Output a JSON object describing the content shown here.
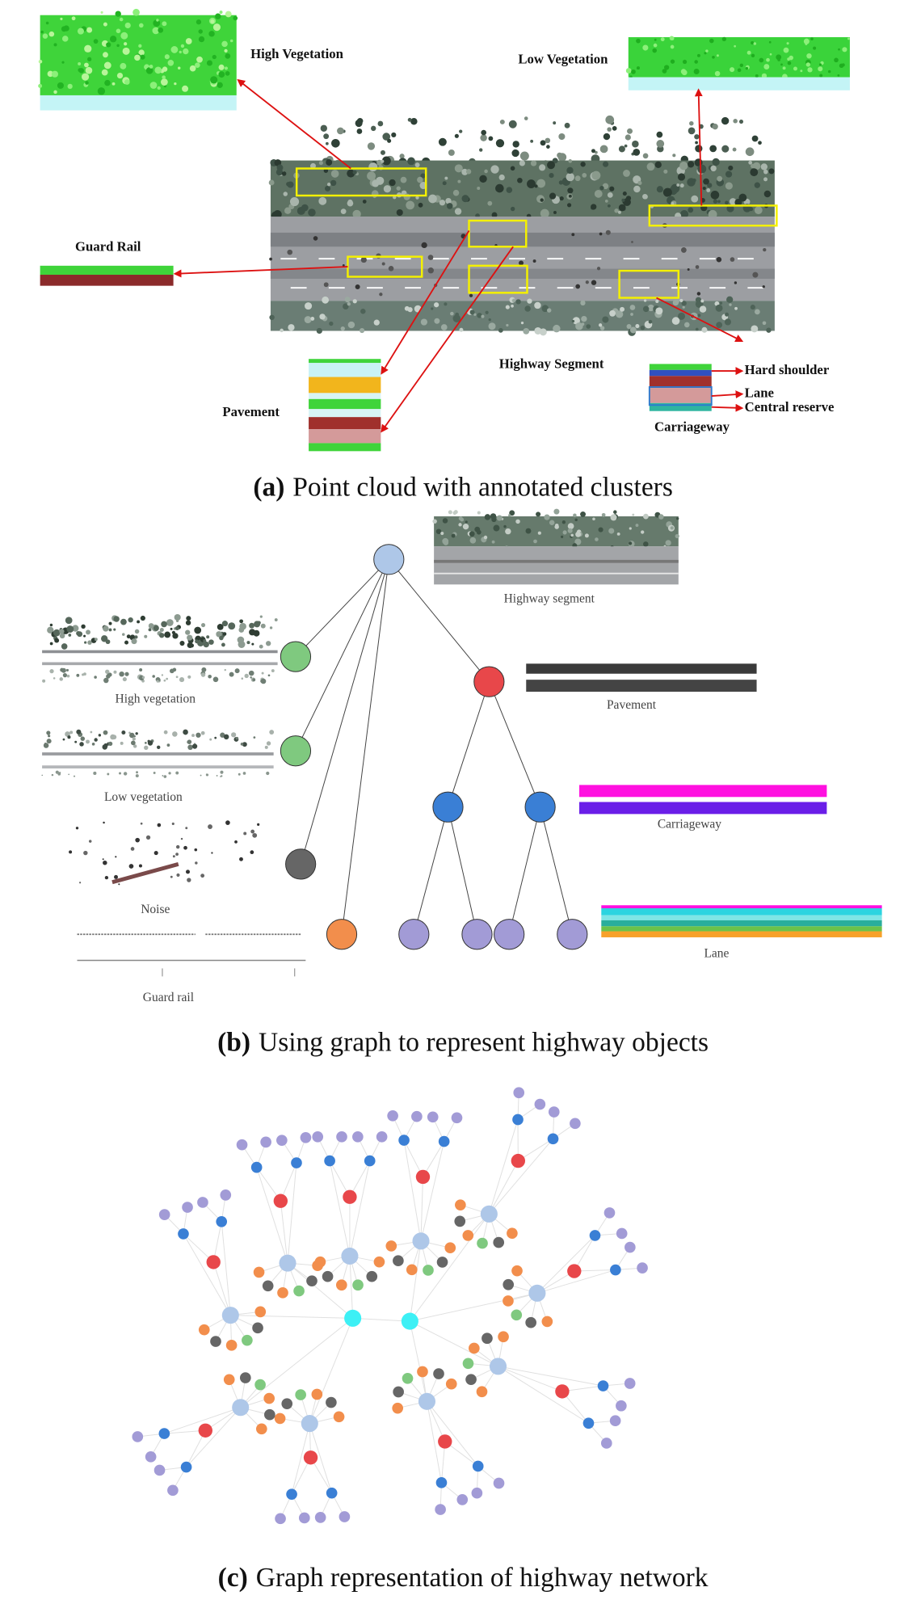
{
  "panel_a": {
    "labels": {
      "high_vegetation": "High Vegetation",
      "low_vegetation": "Low Vegetation",
      "guard_rail": "Guard Rail",
      "pavement": "Pavement",
      "highway_segment": "Highway Segment",
      "hard_shoulder": "Hard shoulder",
      "lane": "Lane",
      "central_reserve": "Central reserve",
      "carriageway": "Carriageway"
    },
    "caption": {
      "label": "(a)",
      "text": "Point cloud with annotated clusters"
    }
  },
  "panel_b": {
    "labels": {
      "highway_segment": "Highway segment",
      "high_vegetation": "High vegetation",
      "low_vegetation": "Low vegetation",
      "noise": "Noise",
      "guard_rail": "Guard rail",
      "pavement": "Pavement",
      "carriageway": "Carriageway",
      "lane": "Lane"
    },
    "caption": {
      "label": "(b)",
      "text": "Using graph to represent highway objects"
    }
  },
  "panel_c": {
    "caption": {
      "label": "(c)",
      "text": "Graph representation of highway network"
    }
  }
}
